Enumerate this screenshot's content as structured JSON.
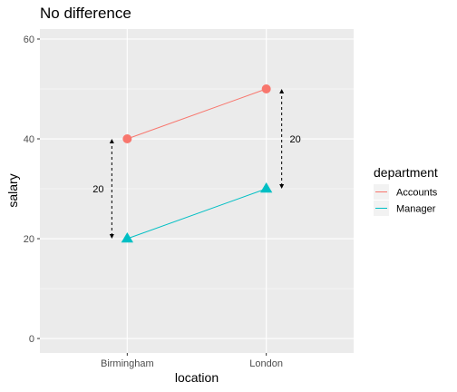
{
  "chart_data": {
    "type": "line",
    "title": "No difference",
    "xlabel": "location",
    "ylabel": "salary",
    "categories": [
      "Birmingham",
      "London"
    ],
    "ylim": [
      0,
      62
    ],
    "yticks": [
      0,
      20,
      40,
      60
    ],
    "grid": true,
    "series": [
      {
        "name": "Accounts",
        "values": [
          40,
          50
        ],
        "color": "#F8766D",
        "marker": "circle"
      },
      {
        "name": "Manager",
        "values": [
          20,
          30
        ],
        "color": "#00BFC4",
        "marker": "triangle"
      }
    ],
    "legend": {
      "title": "department",
      "position": "right"
    },
    "annotations": [
      {
        "category": "Birmingham",
        "from": 20,
        "to": 40,
        "label": "20",
        "side": "left"
      },
      {
        "category": "London",
        "from": 30,
        "to": 50,
        "label": "20",
        "side": "right"
      }
    ]
  }
}
